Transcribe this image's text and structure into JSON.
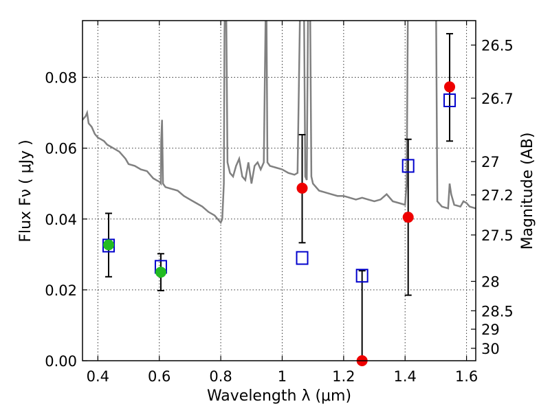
{
  "chart_data": {
    "type": "scatter",
    "xlabel": "Wavelength  λ (μm)",
    "ylabel_left": "Flux  Fν  ( μJy )",
    "ylabel_right": "Magnitude (AB)",
    "xlim": [
      0.35,
      1.63
    ],
    "ylim": [
      0.0,
      0.096
    ],
    "grid": true,
    "x_ticks": [
      0.4,
      0.6,
      0.8,
      1.0,
      1.2,
      1.4,
      1.6
    ],
    "x_tick_labels": [
      "0.4",
      "0.6",
      "0.8",
      "1",
      "1.2",
      "1.4",
      "1.6"
    ],
    "y_ticks": [
      0.0,
      0.02,
      0.04,
      0.06,
      0.08
    ],
    "y_tick_labels": [
      "0.00",
      "0.02",
      "0.04",
      "0.06",
      "0.08"
    ],
    "right_ticks": [
      {
        "label": "26.5",
        "flux": 0.0891
      },
      {
        "label": "26.7",
        "flux": 0.0741
      },
      {
        "label": "27",
        "flux": 0.0562
      },
      {
        "label": "27.2",
        "flux": 0.0468
      },
      {
        "label": "27.5",
        "flux": 0.0355
      },
      {
        "label": "28",
        "flux": 0.0224
      },
      {
        "label": "28.5",
        "flux": 0.0141
      },
      {
        "label": "29",
        "flux": 0.0089
      },
      {
        "label": "30",
        "flux": 0.0035
      }
    ],
    "series": [
      {
        "kind": "template-spectrum",
        "color": "#808080",
        "points": [
          [
            0.35,
            0.068
          ],
          [
            0.36,
            0.069
          ],
          [
            0.365,
            0.07
          ],
          [
            0.37,
            0.067
          ],
          [
            0.38,
            0.066
          ],
          [
            0.39,
            0.064
          ],
          [
            0.4,
            0.063
          ],
          [
            0.41,
            0.0625
          ],
          [
            0.42,
            0.062
          ],
          [
            0.43,
            0.061
          ],
          [
            0.44,
            0.0605
          ],
          [
            0.45,
            0.06
          ],
          [
            0.46,
            0.0595
          ],
          [
            0.47,
            0.059
          ],
          [
            0.48,
            0.058
          ],
          [
            0.49,
            0.057
          ],
          [
            0.5,
            0.0555
          ],
          [
            0.52,
            0.055
          ],
          [
            0.54,
            0.054
          ],
          [
            0.56,
            0.0535
          ],
          [
            0.58,
            0.0515
          ],
          [
            0.6,
            0.0505
          ],
          [
            0.605,
            0.05
          ],
          [
            0.606,
            0.062
          ],
          [
            0.609,
            0.068
          ],
          [
            0.612,
            0.05
          ],
          [
            0.62,
            0.049
          ],
          [
            0.64,
            0.0485
          ],
          [
            0.66,
            0.048
          ],
          [
            0.68,
            0.0465
          ],
          [
            0.7,
            0.0455
          ],
          [
            0.72,
            0.0445
          ],
          [
            0.74,
            0.0435
          ],
          [
            0.76,
            0.042
          ],
          [
            0.78,
            0.041
          ],
          [
            0.79,
            0.04
          ],
          [
            0.8,
            0.039
          ],
          [
            0.805,
            0.04
          ],
          [
            0.81,
            0.05
          ],
          [
            0.812,
            0.092
          ],
          [
            0.815,
            0.11
          ],
          [
            0.818,
            0.098
          ],
          [
            0.822,
            0.056
          ],
          [
            0.83,
            0.053
          ],
          [
            0.84,
            0.052
          ],
          [
            0.85,
            0.055
          ],
          [
            0.86,
            0.057
          ],
          [
            0.87,
            0.052
          ],
          [
            0.88,
            0.051
          ],
          [
            0.89,
            0.056
          ],
          [
            0.9,
            0.05
          ],
          [
            0.91,
            0.055
          ],
          [
            0.92,
            0.056
          ],
          [
            0.93,
            0.054
          ],
          [
            0.94,
            0.056
          ],
          [
            0.945,
            0.09
          ],
          [
            0.948,
            0.11
          ],
          [
            0.952,
            0.056
          ],
          [
            0.96,
            0.055
          ],
          [
            0.98,
            0.0545
          ],
          [
            1.0,
            0.054
          ],
          [
            1.02,
            0.053
          ],
          [
            1.04,
            0.0525
          ],
          [
            1.05,
            0.053
          ],
          [
            1.06,
            0.11
          ],
          [
            1.07,
            0.11
          ],
          [
            1.075,
            0.052
          ],
          [
            1.08,
            0.051
          ],
          [
            1.085,
            0.11
          ],
          [
            1.09,
            0.11
          ],
          [
            1.095,
            0.052
          ],
          [
            1.1,
            0.05
          ],
          [
            1.12,
            0.048
          ],
          [
            1.14,
            0.0475
          ],
          [
            1.16,
            0.047
          ],
          [
            1.18,
            0.0465
          ],
          [
            1.2,
            0.0465
          ],
          [
            1.22,
            0.046
          ],
          [
            1.24,
            0.0455
          ],
          [
            1.26,
            0.046
          ],
          [
            1.28,
            0.0455
          ],
          [
            1.3,
            0.045
          ],
          [
            1.32,
            0.0455
          ],
          [
            1.34,
            0.047
          ],
          [
            1.36,
            0.045
          ],
          [
            1.38,
            0.0445
          ],
          [
            1.4,
            0.044
          ],
          [
            1.405,
            0.05
          ],
          [
            1.41,
            0.11
          ],
          [
            1.42,
            0.11
          ],
          [
            1.43,
            0.11
          ],
          [
            1.44,
            0.11
          ],
          [
            1.45,
            0.11
          ],
          [
            1.46,
            0.11
          ],
          [
            1.47,
            0.11
          ],
          [
            1.48,
            0.11
          ],
          [
            1.49,
            0.11
          ],
          [
            1.5,
            0.11
          ],
          [
            1.505,
            0.045
          ],
          [
            1.52,
            0.0435
          ],
          [
            1.54,
            0.043
          ],
          [
            1.545,
            0.05
          ],
          [
            1.55,
            0.047
          ],
          [
            1.56,
            0.044
          ],
          [
            1.58,
            0.0435
          ],
          [
            1.59,
            0.045
          ],
          [
            1.6,
            0.0445
          ],
          [
            1.61,
            0.0435
          ],
          [
            1.63,
            0.043
          ]
        ]
      },
      {
        "kind": "model-squares",
        "color": "#0000cc",
        "points": [
          [
            0.435,
            0.0325
          ],
          [
            0.605,
            0.0265
          ],
          [
            1.065,
            0.029
          ],
          [
            1.26,
            0.024
          ],
          [
            1.41,
            0.055
          ],
          [
            1.545,
            0.0735
          ]
        ]
      },
      {
        "kind": "observed-green",
        "color": "#22bb22",
        "points": [
          {
            "x": 0.435,
            "y": 0.0327,
            "err_low": 0.0237,
            "err_high": 0.0416
          },
          {
            "x": 0.605,
            "y": 0.025,
            "err_low": 0.0198,
            "err_high": 0.0302
          }
        ]
      },
      {
        "kind": "observed-red",
        "color": "#ee0000",
        "points": [
          {
            "x": 1.065,
            "y": 0.0487,
            "err_low": 0.0333,
            "err_high": 0.0638
          },
          {
            "x": 1.26,
            "y": 0.0,
            "err_low": 0.0,
            "err_high": 0.0254
          },
          {
            "x": 1.41,
            "y": 0.0405,
            "err_low": 0.0185,
            "err_high": 0.0625
          },
          {
            "x": 1.545,
            "y": 0.0773,
            "err_low": 0.062,
            "err_high": 0.0923
          }
        ]
      }
    ]
  }
}
